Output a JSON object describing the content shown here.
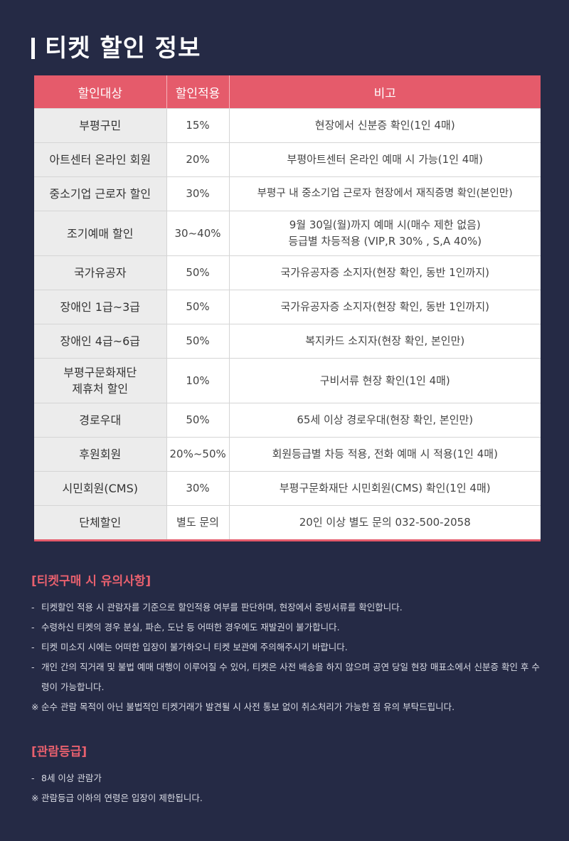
{
  "page_title": "티켓 할인 정보",
  "table": {
    "headers": [
      "할인대상",
      "할인적용",
      "비고"
    ],
    "rows": [
      {
        "target": "부평구민",
        "rate": "15%",
        "note": "현장에서 신분증 확인(1인 4매)"
      },
      {
        "target": "아트센터 온라인 회원",
        "rate": "20%",
        "note": "부평아트센터 온라인 예매 시 가능(1인 4매)"
      },
      {
        "target": "중소기업 근로자 할인",
        "rate": "30%",
        "note": "부평구 내 중소기업 근로자 현장에서 재직증명 확인(본인만)"
      },
      {
        "target": "조기예매 할인",
        "rate": "30~40%",
        "note": "9월 30일(월)까지 예매 시(매수 제한 없음)",
        "note2": "등급별 차등적용 (VIP,R 30% , S,A 40%)"
      },
      {
        "target": "국가유공자",
        "rate": "50%",
        "note": "국가유공자증 소지자(현장 확인, 동반 1인까지)"
      },
      {
        "target": "장애인 1급~3급",
        "rate": "50%",
        "note": "국가유공자증 소지자(현장 확인, 동반 1인까지)"
      },
      {
        "target": "장애인 4급~6급",
        "rate": "50%",
        "note": "복지카드 소지자(현장 확인, 본인만)"
      },
      {
        "target": "부평구문화재단",
        "target2": "제휴처 할인",
        "rate": "10%",
        "note": "구비서류 현장 확인(1인 4매)"
      },
      {
        "target": "경로우대",
        "rate": "50%",
        "note": "65세 이상 경로우대(현장 확인, 본인만)"
      },
      {
        "target": "후원회원",
        "rate": "20%~50%",
        "note": "회원등급별 차등 적용, 전화 예매 시 적용(1인 4매)"
      },
      {
        "target": "시민회원(CMS)",
        "rate": "30%",
        "note": "부평구문화재단 시민회원(CMS) 확인(1인 4매)"
      },
      {
        "target": "단체할인",
        "rate": "별도 문의",
        "note": "20인 이상 별도 문의 032-500-2058"
      }
    ]
  },
  "precautions": {
    "title": "[티켓구매 시 유의사항]",
    "items": [
      {
        "mark": "-",
        "text": "티켓할인 적용 시 관람자를 기준으로 할인적용 여부를 판단하며, 현장에서 증빙서류를 확인합니다."
      },
      {
        "mark": "-",
        "text": "수령하신 티켓의 경우 분실, 파손, 도난 등 어떠한 경우에도 재발권이 불가합니다."
      },
      {
        "mark": "-",
        "text": "티켓 미소지 시에는 어떠한 입장이 불가하오니 티켓 보관에 주의해주시기 바랍니다."
      },
      {
        "mark": "-",
        "text": "개인 간의 직거래 및 불법 예매 대행이 이루어질 수 있어, 티켓은 사전 배송을 하지 않으며 공연 당일 현장 매표소에서 신분증 확인 후 수령이 가능합니다."
      },
      {
        "mark": "※",
        "text": "순수 관람 목적이 아닌 불법적인 티켓거래가 발견될 시 사전 통보 없이 취소처리가 가능한 점 유의 부탁드립니다."
      }
    ]
  },
  "rating": {
    "title": "[관람등급]",
    "items": [
      {
        "mark": "-",
        "text": "8세 이상 관람가"
      },
      {
        "mark": "※",
        "text": "관람등급 이하의 연령은 입장이 제한됩니다."
      }
    ]
  }
}
